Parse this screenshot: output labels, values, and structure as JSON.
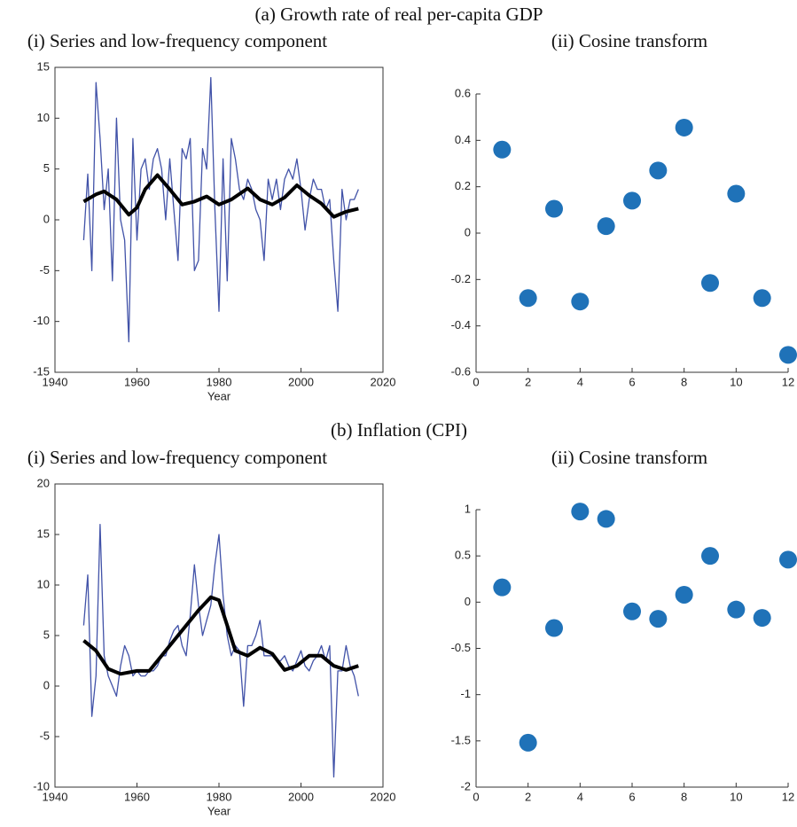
{
  "sections": [
    {
      "title": "(a) Growth rate of real per-capita GDP"
    },
    {
      "title": "(b) Inflation (CPI)"
    }
  ],
  "chart_data": [
    {
      "type": "line",
      "title": "(i) Series and low-frequency component",
      "xlabel": "Year",
      "xlim": [
        1940,
        2020
      ],
      "xticks": [
        1940,
        1960,
        1980,
        2000,
        2020
      ],
      "ylim": [
        -15,
        15
      ],
      "yticks": [
        -15,
        -10,
        -5,
        0,
        5,
        10,
        15
      ],
      "series": [
        {
          "color": "#4152a8",
          "width": 1.3,
          "x": [
            1947,
            1948,
            1949,
            1950,
            1951,
            1952,
            1953,
            1954,
            1955,
            1956,
            1957,
            1958,
            1959,
            1960,
            1961,
            1962,
            1963,
            1964,
            1965,
            1966,
            1967,
            1968,
            1969,
            1970,
            1971,
            1972,
            1973,
            1974,
            1975,
            1976,
            1977,
            1978,
            1979,
            1980,
            1981,
            1982,
            1983,
            1984,
            1985,
            1986,
            1987,
            1988,
            1989,
            1990,
            1991,
            1992,
            1993,
            1994,
            1995,
            1996,
            1997,
            1998,
            1999,
            2000,
            2001,
            2002,
            2003,
            2004,
            2005,
            2006,
            2007,
            2008,
            2009,
            2010,
            2011,
            2012,
            2013,
            2014
          ],
          "values": [
            -2,
            4.5,
            -5,
            13.5,
            8,
            1,
            5,
            -6,
            10,
            0,
            -2,
            -12,
            8,
            -2,
            5,
            6,
            3,
            6,
            7,
            5,
            0,
            6,
            1,
            -4,
            7,
            6,
            8,
            -5,
            -4,
            7,
            5,
            14,
            1,
            -9,
            6,
            -6,
            8,
            6,
            3,
            2,
            4,
            3,
            1,
            0,
            -4,
            4,
            2,
            4,
            1,
            4,
            5,
            4,
            6,
            3,
            -1,
            2,
            4,
            3,
            3,
            1,
            2,
            -4,
            -9,
            3,
            0,
            2,
            2,
            3
          ]
        },
        {
          "color": "#000000",
          "width": 4,
          "x": [
            1947,
            1950,
            1952,
            1955,
            1958,
            1960,
            1962,
            1965,
            1968,
            1971,
            1974,
            1977,
            1980,
            1983,
            1987,
            1990,
            1993,
            1996,
            1999,
            2002,
            2005,
            2008,
            2011,
            2014
          ],
          "values": [
            1.8,
            2.5,
            2.8,
            2,
            0.5,
            1.2,
            3,
            4.4,
            3,
            1.5,
            1.8,
            2.3,
            1.5,
            2,
            3.1,
            2,
            1.5,
            2.2,
            3.4,
            2.4,
            1.6,
            0.3,
            0.8,
            1.1
          ]
        }
      ]
    },
    {
      "type": "scatter",
      "title": "(ii) Cosine transform",
      "xlim": [
        0,
        12
      ],
      "xticks": [
        0,
        2,
        4,
        6,
        8,
        10,
        12
      ],
      "ylim": [
        -0.6,
        0.6
      ],
      "yticks": [
        -0.6,
        -0.4,
        -0.2,
        0,
        0.2,
        0.4,
        0.6
      ],
      "color": "#1f72b8",
      "x": [
        1,
        2,
        3,
        4,
        5,
        6,
        7,
        8,
        9,
        10,
        11,
        12
      ],
      "values": [
        0.36,
        -0.28,
        0.105,
        -0.295,
        0.03,
        0.14,
        0.27,
        0.455,
        -0.215,
        0.17,
        -0.28,
        -0.525
      ]
    },
    {
      "type": "line",
      "title": "(i) Series and low-frequency component",
      "xlabel": "Year",
      "xlim": [
        1940,
        2020
      ],
      "xticks": [
        1940,
        1960,
        1980,
        2000,
        2020
      ],
      "ylim": [
        -10,
        20
      ],
      "yticks": [
        -10,
        -5,
        0,
        5,
        10,
        15,
        20
      ],
      "series": [
        {
          "color": "#4152a8",
          "width": 1.3,
          "x": [
            1947,
            1948,
            1949,
            1950,
            1951,
            1952,
            1953,
            1954,
            1955,
            1956,
            1957,
            1958,
            1959,
            1960,
            1961,
            1962,
            1963,
            1964,
            1965,
            1966,
            1967,
            1968,
            1969,
            1970,
            1971,
            1972,
            1973,
            1974,
            1975,
            1976,
            1977,
            1978,
            1979,
            1980,
            1981,
            1982,
            1983,
            1984,
            1985,
            1986,
            1987,
            1988,
            1989,
            1990,
            1991,
            1992,
            1993,
            1994,
            1995,
            1996,
            1997,
            1998,
            1999,
            2000,
            2001,
            2002,
            2003,
            2004,
            2005,
            2006,
            2007,
            2008,
            2009,
            2010,
            2011,
            2012,
            2013,
            2014
          ],
          "values": [
            6,
            11,
            -3,
            1,
            16,
            3,
            1,
            0,
            -1,
            2,
            4,
            3,
            1,
            1.5,
            1,
            1,
            1.5,
            1.5,
            2,
            3,
            3,
            4.5,
            5.5,
            6,
            4,
            3,
            7,
            12,
            8,
            5,
            6.5,
            8,
            12,
            15,
            9,
            5,
            3,
            4,
            3.5,
            -2,
            4,
            4,
            5,
            6.5,
            3,
            3,
            3,
            2.5,
            2.5,
            3,
            2,
            1.5,
            2.5,
            3.5,
            2,
            1.5,
            2.5,
            3,
            4,
            2.5,
            4,
            -9,
            1.5,
            1.5,
            4,
            2,
            1,
            -1
          ]
        },
        {
          "color": "#000000",
          "width": 4,
          "x": [
            1947,
            1950,
            1953,
            1956,
            1960,
            1963,
            1966,
            1969,
            1972,
            1975,
            1978,
            1980,
            1982,
            1984,
            1987,
            1990,
            1993,
            1996,
            1999,
            2002,
            2005,
            2008,
            2011,
            2014
          ],
          "values": [
            4.5,
            3.5,
            1.7,
            1.2,
            1.5,
            1.5,
            3,
            4.5,
            6,
            7.5,
            8.8,
            8.5,
            6,
            3.5,
            3,
            3.8,
            3.2,
            1.6,
            2,
            3,
            3,
            2,
            1.6,
            2
          ]
        }
      ]
    },
    {
      "type": "scatter",
      "title": "(ii) Cosine transform",
      "xlim": [
        0,
        12
      ],
      "xticks": [
        0,
        2,
        4,
        6,
        8,
        10,
        12
      ],
      "ylim": [
        -2,
        1
      ],
      "yticks": [
        -2,
        -1.5,
        -1,
        -0.5,
        0,
        0.5,
        1
      ],
      "color": "#1f72b8",
      "x": [
        1,
        2,
        3,
        4,
        5,
        6,
        7,
        8,
        9,
        10,
        11,
        12
      ],
      "values": [
        0.16,
        -1.52,
        -0.28,
        0.98,
        0.9,
        -0.1,
        -0.18,
        0.08,
        0.5,
        -0.08,
        -0.17,
        0.46
      ]
    }
  ]
}
